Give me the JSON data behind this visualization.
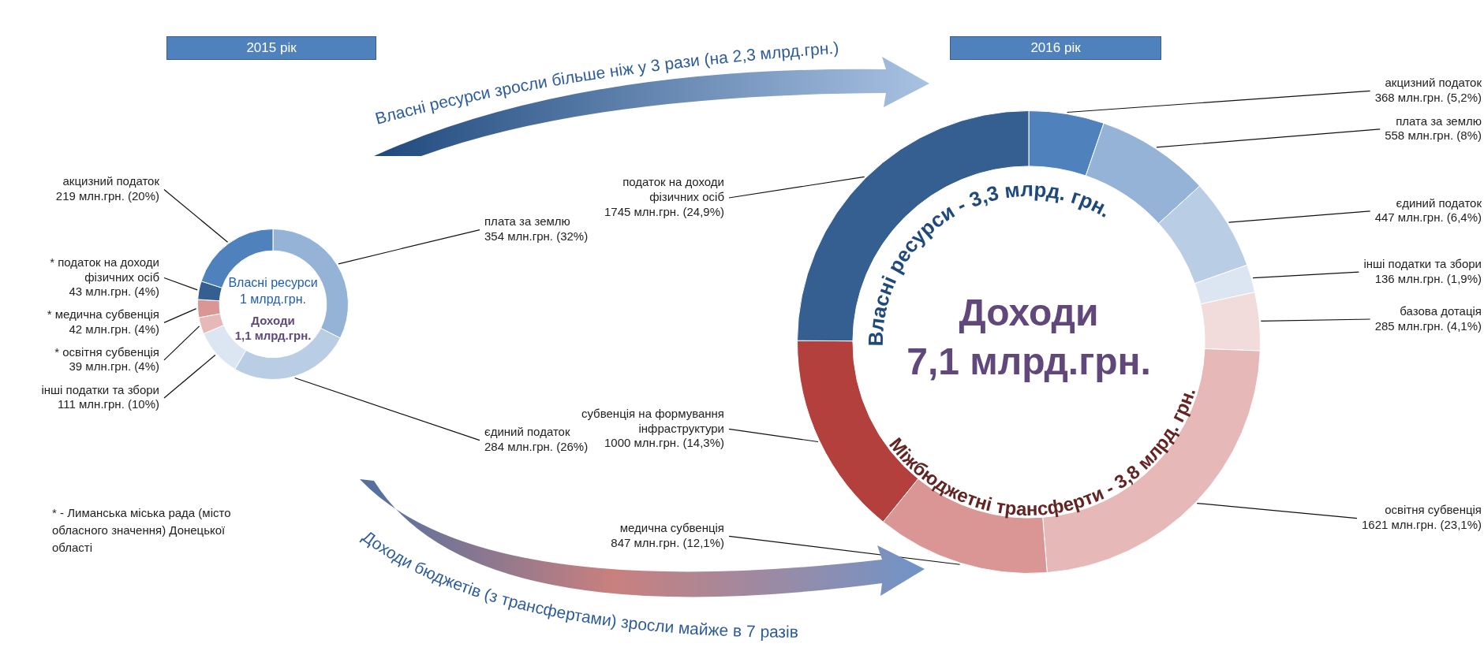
{
  "chart_data": [
    {
      "type": "donut",
      "title": "2015 рік",
      "categories": [
        "плата за землю",
        "єдиний податок",
        "інші податки та збори",
        "* освітня субвенція",
        "* медична субвенція",
        "* податок на доходи фізичних осіб",
        "акцизний податок"
      ],
      "values": [
        354,
        284,
        111,
        39,
        42,
        43,
        219
      ],
      "colors": [
        "#95b3d7",
        "#b9cde5",
        "#dce6f2",
        "#e6b9b8",
        "#d99694",
        "#355f91",
        "#4f81bd"
      ],
      "value_labels": [
        "354 млн.грн. (32%)",
        "284 млн.грн. (26%)",
        "111 млн.грн. (10%)",
        "39 млн.грн. (4%)",
        "42 млн.грн. (4%)",
        "43 млн.грн. (4%)",
        "219 млн.грн. (20%)"
      ],
      "annotations": [
        "Власні ресурси\n1 млрд.грн.",
        "Доходи\n1,1 млрд.грн.",
        "* - Лиманська міська рада (місто\nобласного значення) Донецької\nобласті",
        "Власні ресурси зросли більше ніж у 3 рази (на 2,3 млрд.грн.)",
        "Доходи бюджетів (з трансфертами) зросли майже в 7 разів"
      ]
    },
    {
      "type": "donut",
      "title": "2016 рік",
      "categories": [
        "акцизний податок",
        "плата за землю",
        "єдиний податок",
        "інші податки та збори",
        "базова дотація",
        "освітня субвенція",
        "медична субвенція",
        "субвенція на формування інфраструктури",
        "податок на доходи фізичних осіб"
      ],
      "values": [
        368,
        558,
        447,
        136,
        285,
        1621,
        847,
        1000,
        1745
      ],
      "colors": [
        "#4f81bd",
        "#95b3d7",
        "#b9cde5",
        "#dce6f2",
        "#f2dcdb",
        "#e6b9b8",
        "#d99694",
        "#b4403d",
        "#355f91"
      ],
      "value_labels": [
        "368 млн.грн. (5,2%)",
        "558 млн.грн. (8%)",
        "447 млн.грн. (6,4%)",
        "136 млн.грн. (1,9%)",
        "285 млн.грн. (4,1%)",
        "1621 млн.грн. (23,1%)",
        "847 млн.грн. (12,1%)",
        "1000 млн.грн. (14,3%)",
        "1745 млн.грн. (24,9%)"
      ],
      "annotations": [
        "Доходи\n7,1 млрд.грн.",
        "Власні ресурси - 3,3 млрд. грн.",
        "Міжбюджетні трансферти - 3,8 млрд. грн."
      ]
    }
  ]
}
